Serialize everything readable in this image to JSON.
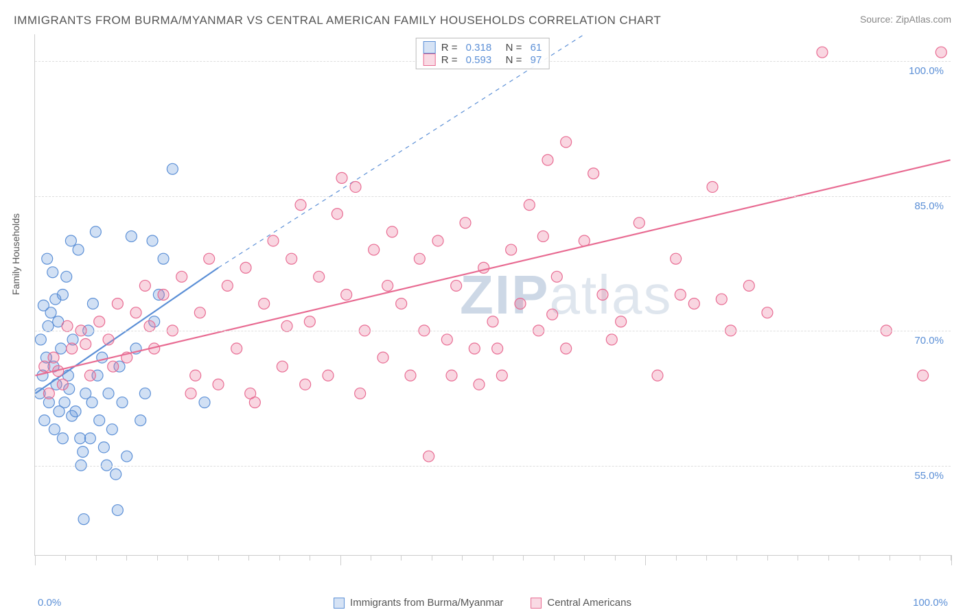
{
  "title": "IMMIGRANTS FROM BURMA/MYANMAR VS CENTRAL AMERICAN FAMILY HOUSEHOLDS CORRELATION CHART",
  "source": "Source: ZipAtlas.com",
  "y_axis_label": "Family Households",
  "x_left": "0.0%",
  "x_right": "100.0%",
  "watermark_a": "ZIP",
  "watermark_b": "atlas",
  "chart": {
    "type": "scatter",
    "background_color": "#ffffff",
    "grid_color": "#dddddd",
    "x_range": [
      0,
      100
    ],
    "y_range": [
      45,
      103
    ],
    "y_ticks": [
      55.0,
      70.0,
      85.0,
      100.0
    ],
    "y_tick_labels": [
      "55.0%",
      "70.0%",
      "85.0%",
      "100.0%"
    ],
    "x_major_ticks": [
      0,
      33.3,
      66.6,
      100
    ],
    "x_minor_tick_step": 3.33,
    "marker_radius": 8,
    "marker_stroke_width": 1.2,
    "marker_fill_opacity": 0.28,
    "trend_line_width": 2.2,
    "axis_font_color": "#5b8fd6"
  },
  "series": [
    {
      "id": "burma",
      "label": "Immigrants from Burma/Myanmar",
      "color": "#5b8fd6",
      "R": "0.318",
      "N": "61",
      "trend": {
        "x1": 0,
        "y1": 63,
        "x2": 20,
        "y2": 77,
        "dash_x2": 60,
        "dash_y2": 103
      },
      "points": [
        [
          0.5,
          63
        ],
        [
          0.8,
          65
        ],
        [
          1.0,
          60
        ],
        [
          1.2,
          67
        ],
        [
          1.4,
          70.5
        ],
        [
          1.5,
          62
        ],
        [
          1.7,
          72
        ],
        [
          2.0,
          66
        ],
        [
          2.1,
          59
        ],
        [
          2.3,
          64
        ],
        [
          2.5,
          71
        ],
        [
          2.8,
          68
        ],
        [
          3.0,
          74
        ],
        [
          3.2,
          62
        ],
        [
          3.4,
          76
        ],
        [
          3.6,
          65
        ],
        [
          3.9,
          80
        ],
        [
          4.1,
          69
        ],
        [
          4.4,
          61
        ],
        [
          4.7,
          79
        ],
        [
          5.0,
          55
        ],
        [
          5.2,
          56.5
        ],
        [
          5.5,
          63
        ],
        [
          5.8,
          70
        ],
        [
          6.0,
          58
        ],
        [
          6.3,
          73
        ],
        [
          6.6,
          81
        ],
        [
          7.0,
          60
        ],
        [
          7.3,
          67
        ],
        [
          7.5,
          57
        ],
        [
          8.0,
          63
        ],
        [
          8.4,
          59
        ],
        [
          8.8,
          54
        ],
        [
          9.2,
          66
        ],
        [
          9.5,
          62
        ],
        [
          10.0,
          56
        ],
        [
          10.5,
          80.5
        ],
        [
          11.0,
          68
        ],
        [
          12.0,
          63
        ],
        [
          12.8,
          80
        ],
        [
          13.5,
          74
        ],
        [
          14.0,
          78
        ],
        [
          15.0,
          88
        ],
        [
          9.0,
          50
        ],
        [
          5.3,
          49
        ],
        [
          3.0,
          58
        ],
        [
          4.0,
          60.5
        ],
        [
          6.8,
          65
        ],
        [
          2.2,
          73.5
        ],
        [
          1.9,
          76.5
        ],
        [
          7.8,
          55
        ],
        [
          11.5,
          60
        ],
        [
          13.0,
          71
        ],
        [
          6.2,
          62
        ],
        [
          4.9,
          58
        ],
        [
          2.6,
          61
        ],
        [
          1.3,
          78
        ],
        [
          0.9,
          72.8
        ],
        [
          0.6,
          69
        ],
        [
          3.7,
          63.5
        ],
        [
          18.5,
          62
        ]
      ]
    },
    {
      "id": "central",
      "label": "Central Americans",
      "color": "#e86b92",
      "R": "0.593",
      "N": "97",
      "trend": {
        "x1": 0,
        "y1": 65,
        "x2": 100,
        "y2": 89
      },
      "points": [
        [
          1,
          66
        ],
        [
          2,
          67
        ],
        [
          3,
          64
        ],
        [
          4,
          68
        ],
        [
          5,
          70
        ],
        [
          6,
          65
        ],
        [
          7,
          71
        ],
        [
          8,
          69
        ],
        [
          9,
          73
        ],
        [
          10,
          67
        ],
        [
          11,
          72
        ],
        [
          12,
          75
        ],
        [
          13,
          68
        ],
        [
          14,
          74
        ],
        [
          15,
          70
        ],
        [
          16,
          76
        ],
        [
          17,
          63
        ],
        [
          18,
          72
        ],
        [
          19,
          78
        ],
        [
          20,
          64
        ],
        [
          21,
          75
        ],
        [
          22,
          68
        ],
        [
          23,
          77
        ],
        [
          24,
          62
        ],
        [
          25,
          73
        ],
        [
          26,
          80
        ],
        [
          27,
          66
        ],
        [
          28,
          78
        ],
        [
          29,
          84
        ],
        [
          30,
          71
        ],
        [
          31,
          76
        ],
        [
          32,
          65
        ],
        [
          33,
          83
        ],
        [
          34,
          74
        ],
        [
          35,
          86
        ],
        [
          36,
          70
        ],
        [
          37,
          79
        ],
        [
          38,
          67
        ],
        [
          39,
          81
        ],
        [
          40,
          73
        ],
        [
          41,
          65
        ],
        [
          42,
          78
        ],
        [
          43,
          56
        ],
        [
          44,
          80
        ],
        [
          45,
          69
        ],
        [
          46,
          75
        ],
        [
          47,
          82
        ],
        [
          48,
          68
        ],
        [
          49,
          77
        ],
        [
          50,
          71
        ],
        [
          51,
          65
        ],
        [
          52,
          79
        ],
        [
          53,
          73
        ],
        [
          54,
          84
        ],
        [
          55,
          70
        ],
        [
          56,
          89
        ],
        [
          57,
          76
        ],
        [
          58,
          68
        ],
        [
          60,
          80
        ],
        [
          62,
          74
        ],
        [
          64,
          71
        ],
        [
          66,
          82
        ],
        [
          68,
          65
        ],
        [
          70,
          78
        ],
        [
          72,
          73
        ],
        [
          74,
          86
        ],
        [
          76,
          70
        ],
        [
          78,
          75
        ],
        [
          80,
          72
        ],
        [
          75,
          73.5
        ],
        [
          63,
          69
        ],
        [
          48.5,
          64
        ],
        [
          35.5,
          63
        ],
        [
          29.5,
          64
        ],
        [
          23.5,
          63
        ],
        [
          17.5,
          65
        ],
        [
          12.5,
          70.5
        ],
        [
          8.5,
          66
        ],
        [
          5.5,
          68.5
        ],
        [
          3.5,
          70.5
        ],
        [
          2.5,
          65.5
        ],
        [
          1.5,
          63
        ],
        [
          61,
          87.5
        ],
        [
          58,
          91
        ],
        [
          33.5,
          87
        ],
        [
          93,
          70
        ],
        [
          97,
          65
        ],
        [
          70.5,
          74
        ],
        [
          55.5,
          80.5
        ],
        [
          45.5,
          65
        ],
        [
          38.5,
          75
        ],
        [
          27.5,
          70.5
        ],
        [
          86,
          101
        ],
        [
          99,
          101
        ],
        [
          56.5,
          71.8
        ],
        [
          50.5,
          68
        ],
        [
          42.5,
          70
        ]
      ]
    }
  ],
  "bottom_legend": [
    {
      "series": "burma",
      "label": "Immigrants from Burma/Myanmar"
    },
    {
      "series": "central",
      "label": "Central Americans"
    }
  ]
}
